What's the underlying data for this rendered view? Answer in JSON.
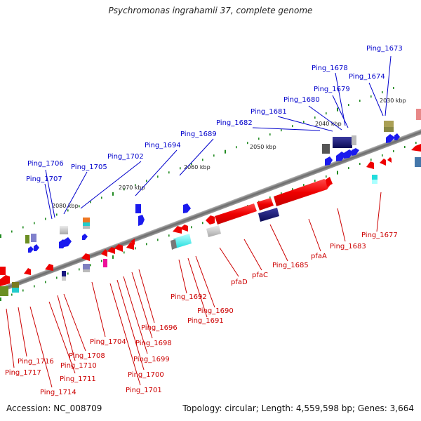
{
  "title": "Psychromonas ingrahamii 37, complete genome",
  "accession": "Accession: NC_008709",
  "topology": "Topology: circular; Length: 4,559,598 bp; Genes: 3,664",
  "colors": {
    "forward_label": "#0000cc",
    "reverse_label": "#cc0000",
    "backbone": "#777777",
    "ticks": "#228b22"
  },
  "kbp_ticks": [
    "2030 kbp",
    "2040 kbp",
    "2050 kbp",
    "2060 kbp",
    "2070 kbp",
    "2080 kbp"
  ],
  "forward_labels": [
    "Ping_1673",
    "Ping_1674",
    "Ping_1678",
    "Ping_1679",
    "Ping_1680",
    "Ping_1681",
    "Ping_1682",
    "Ping_1689",
    "Ping_1694",
    "Ping_1702",
    "Ping_1705",
    "Ping_1706",
    "Ping_1707"
  ],
  "reverse_labels": [
    "Ping_1677",
    "Ping_1683",
    "pfaA",
    "Ping_1685",
    "pfaC",
    "pfaD",
    "Ping_1690",
    "Ping_1691",
    "Ping_1692",
    "Ping_1696",
    "Ping_1698",
    "Ping_1699",
    "Ping_1700",
    "Ping_1701",
    "Ping_1704",
    "Ping_1708",
    "Ping_1710",
    "Ping_1711",
    "Ping_1714",
    "Ping_1716",
    "Ping_1717"
  ]
}
